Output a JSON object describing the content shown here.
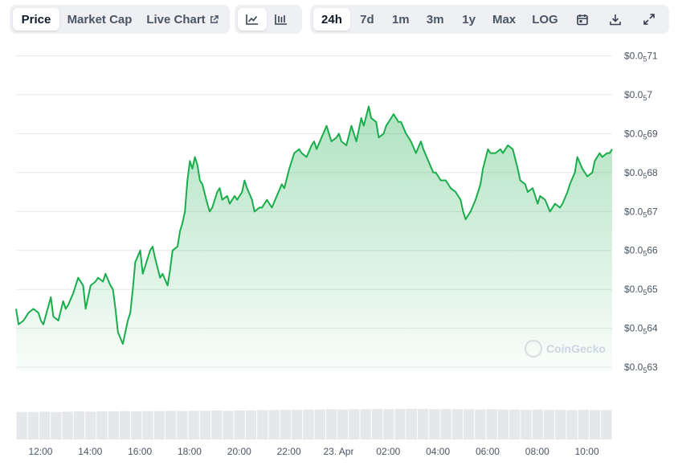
{
  "toolbar": {
    "view_tabs": [
      {
        "label": "Price",
        "active": true
      },
      {
        "label": "Market Cap",
        "active": false
      },
      {
        "label": "Live Chart",
        "active": false,
        "icon": "external-link-icon"
      }
    ],
    "chart_type_icons": [
      "line-chart-icon",
      "ohlc-chart-icon"
    ],
    "ranges": [
      {
        "label": "24h",
        "active": true
      },
      {
        "label": "7d",
        "active": false
      },
      {
        "label": "1m",
        "active": false
      },
      {
        "label": "3m",
        "active": false
      },
      {
        "label": "1y",
        "active": false
      },
      {
        "label": "Max",
        "active": false
      },
      {
        "label": "LOG",
        "active": false
      }
    ],
    "action_icons": [
      "calendar-icon",
      "download-icon",
      "fullscreen-icon"
    ]
  },
  "watermark": "CoinGecko",
  "colors": {
    "line": "#1aad4b",
    "accent_bg": "#eef0f3",
    "grid": "#e5e7eb"
  },
  "chart_data": {
    "type": "area",
    "grid": true,
    "ylabels": [
      {
        "value": 7.1e-06,
        "prefix": "$0.0",
        "sub": "5",
        "suffix": "71"
      },
      {
        "value": 7e-06,
        "prefix": "$0.0",
        "sub": "5",
        "suffix": "7"
      },
      {
        "value": 6.9e-06,
        "prefix": "$0.0",
        "sub": "5",
        "suffix": "69"
      },
      {
        "value": 6.8e-06,
        "prefix": "$0.0",
        "sub": "5",
        "suffix": "68"
      },
      {
        "value": 6.7e-06,
        "prefix": "$0.0",
        "sub": "5",
        "suffix": "67"
      },
      {
        "value": 6.6e-06,
        "prefix": "$0.0",
        "sub": "5",
        "suffix": "66"
      },
      {
        "value": 6.5e-06,
        "prefix": "$0.0",
        "sub": "5",
        "suffix": "65"
      },
      {
        "value": 6.4e-06,
        "prefix": "$0.0",
        "sub": "5",
        "suffix": "64"
      },
      {
        "value": 6.3e-06,
        "prefix": "$0.0",
        "sub": "5",
        "suffix": "63"
      }
    ],
    "ylim": [
      6.29e-06,
      7.14e-06
    ],
    "x_range_hours": [
      11.5,
      35.5
    ],
    "xticks": [
      {
        "label": "12:00",
        "hour": 12
      },
      {
        "label": "14:00",
        "hour": 14
      },
      {
        "label": "16:00",
        "hour": 16
      },
      {
        "label": "18:00",
        "hour": 18
      },
      {
        "label": "20:00",
        "hour": 20
      },
      {
        "label": "22:00",
        "hour": 22
      },
      {
        "label": "23. Apr",
        "hour": 24
      },
      {
        "label": "02:00",
        "hour": 26
      },
      {
        "label": "04:00",
        "hour": 28
      },
      {
        "label": "06:00",
        "hour": 30
      },
      {
        "label": "08:00",
        "hour": 32
      },
      {
        "label": "10:00",
        "hour": 34
      }
    ],
    "series": [
      {
        "x": [
          11.5,
          11.6,
          11.8,
          12.0,
          12.2,
          12.4,
          12.5,
          12.6,
          12.9,
          13.0,
          13.2,
          13.4,
          13.5,
          13.6,
          13.8,
          14.0,
          14.2,
          14.3,
          14.5,
          14.7,
          14.8,
          15.0,
          15.1,
          15.3,
          15.4,
          15.5,
          15.6,
          15.8,
          16.0,
          16.1,
          16.2,
          16.3,
          16.5,
          16.6,
          16.7,
          16.9,
          17.0,
          17.1,
          17.3,
          17.4,
          17.6,
          17.7,
          17.8,
          18.0,
          18.1,
          18.2,
          18.3,
          18.4,
          18.5,
          18.6,
          18.7,
          18.8,
          18.9,
          19.0,
          19.2,
          19.3,
          19.4,
          19.6,
          19.7,
          19.8,
          20.0,
          20.1,
          20.3,
          20.4,
          20.6,
          20.7,
          20.8,
          21.0,
          21.1,
          21.3,
          21.4,
          21.6,
          21.8,
          22.0,
          22.2,
          22.3,
          22.5,
          22.7,
          22.9,
          23.0,
          23.2,
          23.4,
          23.5,
          23.6,
          23.8,
          24.0,
          24.2,
          24.4,
          24.5,
          24.6,
          24.8,
          25.0,
          25.2,
          25.4,
          25.5,
          25.7,
          25.8,
          26.0,
          26.1,
          26.3,
          26.4,
          26.5,
          26.7,
          26.9,
          27.0,
          27.2,
          27.4,
          27.6,
          27.8,
          27.9,
          28.1,
          28.3,
          28.4,
          28.6,
          28.8,
          29.0,
          29.2,
          29.4,
          29.5,
          29.6,
          29.8,
          30.0,
          30.2,
          30.3,
          30.5,
          30.6,
          30.8,
          31.0,
          31.1,
          31.3,
          31.5,
          31.7,
          31.8,
          32.0,
          32.1,
          32.3,
          32.5,
          32.6,
          32.8,
          33.0,
          33.2,
          33.4,
          33.5,
          33.7,
          33.8,
          34.0,
          34.1,
          34.3,
          34.5,
          34.7,
          34.8,
          35.0,
          35.1,
          35.3,
          35.4,
          35.5
        ],
        "values": [
          6.45e-06,
          6.41e-06,
          6.42e-06,
          6.44e-06,
          6.45e-06,
          6.44e-06,
          6.42e-06,
          6.41e-06,
          6.48e-06,
          6.43e-06,
          6.42e-06,
          6.47e-06,
          6.45e-06,
          6.46e-06,
          6.49e-06,
          6.53e-06,
          6.51e-06,
          6.45e-06,
          6.51e-06,
          6.52e-06,
          6.53e-06,
          6.52e-06,
          6.54e-06,
          6.51e-06,
          6.5e-06,
          6.45e-06,
          6.39e-06,
          6.36e-06,
          6.42e-06,
          6.44e-06,
          6.5e-06,
          6.57e-06,
          6.6e-06,
          6.54e-06,
          6.56e-06,
          6.6e-06,
          6.61e-06,
          6.58e-06,
          6.53e-06,
          6.54e-06,
          6.51e-06,
          6.55e-06,
          6.6e-06,
          6.61e-06,
          6.65e-06,
          6.67e-06,
          6.7e-06,
          6.78e-06,
          6.83e-06,
          6.81e-06,
          6.84e-06,
          6.82e-06,
          6.78e-06,
          6.77e-06,
          6.72e-06,
          6.7e-06,
          6.71e-06,
          6.75e-06,
          6.76e-06,
          6.73e-06,
          6.74e-06,
          6.72e-06,
          6.74e-06,
          6.73e-06,
          6.75e-06,
          6.78e-06,
          6.76e-06,
          6.73e-06,
          6.7e-06,
          6.71e-06,
          6.71e-06,
          6.73e-06,
          6.71e-06,
          6.74e-06,
          6.77e-06,
          6.76e-06,
          6.81e-06,
          6.85e-06,
          6.86e-06,
          6.85e-06,
          6.84e-06,
          6.87e-06,
          6.88e-06,
          6.86e-06,
          6.89e-06,
          6.92e-06,
          6.88e-06,
          6.89e-06,
          6.9e-06,
          6.88e-06,
          6.87e-06,
          6.92e-06,
          6.88e-06,
          6.94e-06,
          6.92e-06,
          6.97e-06,
          6.94e-06,
          6.93e-06,
          6.89e-06,
          6.9e-06,
          6.92e-06,
          6.93e-06,
          6.95e-06,
          6.93e-06,
          6.93e-06,
          6.9e-06,
          6.88e-06,
          6.85e-06,
          6.88e-06,
          6.86e-06,
          6.83e-06,
          6.8e-06,
          6.8e-06,
          6.78e-06,
          6.78e-06,
          6.76e-06,
          6.75e-06,
          6.73e-06,
          6.7e-06,
          6.68e-06,
          6.7e-06,
          6.73e-06,
          6.77e-06,
          6.81e-06,
          6.86e-06,
          6.85e-06,
          6.85e-06,
          6.86e-06,
          6.85e-06,
          6.87e-06,
          6.86e-06,
          6.81e-06,
          6.78e-06,
          6.77e-06,
          6.75e-06,
          6.76e-06,
          6.72e-06,
          6.74e-06,
          6.73e-06,
          6.7e-06,
          6.72e-06,
          6.71e-06,
          6.72e-06,
          6.75e-06,
          6.77e-06,
          6.8e-06,
          6.84e-06,
          6.81e-06,
          6.79e-06,
          6.8e-06,
          6.83e-06,
          6.85e-06,
          6.84e-06,
          6.85e-06,
          6.85e-06,
          6.86e-06
        ]
      }
    ],
    "volume": {
      "values": [
        0.9,
        0.9,
        0.91,
        0.9,
        0.91,
        0.92,
        0.91,
        0.92,
        0.92,
        0.93,
        0.92,
        0.93,
        0.93,
        0.94,
        0.93,
        0.94,
        0.94,
        0.95,
        0.94,
        0.95,
        0.95,
        0.96,
        0.96,
        0.97,
        0.97,
        0.98,
        0.98,
        0.99,
        0.98,
        0.99,
        0.99,
        1.0,
        0.99,
        1.0,
        1.0,
        1.0,
        0.99,
        1.0,
        0.99,
        0.99,
        0.98,
        0.99,
        0.98,
        0.98,
        0.97,
        0.98,
        0.97,
        0.97,
        0.96,
        0.97,
        0.96,
        0.96
      ]
    }
  }
}
